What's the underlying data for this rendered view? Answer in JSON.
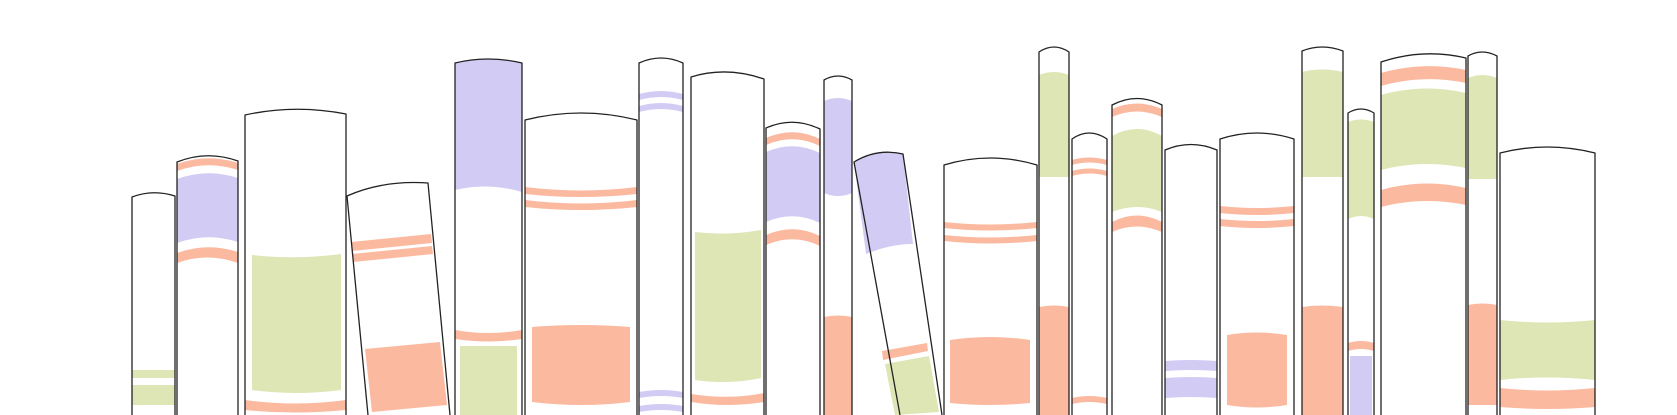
{
  "illustration": {
    "subject": "row-of-book-spines",
    "palette": {
      "lavender": "#d2cbf3",
      "green": "#dde6b4",
      "salmon": "#fbb9a0",
      "outline": "#222222",
      "paper": "#ffffff"
    },
    "books": [
      {
        "id": "book-01",
        "tilt": "upright",
        "colors": [
          "green"
        ]
      },
      {
        "id": "book-02",
        "tilt": "upright",
        "colors": [
          "salmon",
          "lavender"
        ]
      },
      {
        "id": "book-03",
        "tilt": "upright",
        "colors": [
          "green",
          "salmon"
        ]
      },
      {
        "id": "book-04",
        "tilt": "leaning-left",
        "colors": [
          "salmon"
        ]
      },
      {
        "id": "book-05",
        "tilt": "upright",
        "colors": [
          "lavender",
          "salmon",
          "green"
        ]
      },
      {
        "id": "book-06",
        "tilt": "upright",
        "colors": [
          "salmon"
        ]
      },
      {
        "id": "book-07",
        "tilt": "upright",
        "colors": [
          "lavender"
        ]
      },
      {
        "id": "book-08",
        "tilt": "upright",
        "colors": [
          "green",
          "salmon"
        ]
      },
      {
        "id": "book-09",
        "tilt": "upright",
        "colors": [
          "salmon",
          "lavender"
        ]
      },
      {
        "id": "book-10",
        "tilt": "upright",
        "colors": [
          "lavender",
          "salmon"
        ]
      },
      {
        "id": "book-11",
        "tilt": "leaning-right",
        "colors": [
          "lavender",
          "salmon",
          "green"
        ]
      },
      {
        "id": "book-12",
        "tilt": "upright",
        "colors": [
          "salmon"
        ]
      },
      {
        "id": "book-13",
        "tilt": "upright",
        "colors": [
          "green",
          "salmon"
        ]
      },
      {
        "id": "book-14",
        "tilt": "upright",
        "colors": [
          "salmon"
        ]
      },
      {
        "id": "book-15",
        "tilt": "upright",
        "colors": [
          "salmon",
          "green"
        ]
      },
      {
        "id": "book-16",
        "tilt": "upright",
        "colors": [
          "lavender"
        ]
      },
      {
        "id": "book-17",
        "tilt": "upright",
        "colors": [
          "salmon"
        ]
      },
      {
        "id": "book-18",
        "tilt": "upright",
        "colors": [
          "green",
          "salmon"
        ]
      },
      {
        "id": "book-19",
        "tilt": "upright",
        "colors": [
          "green",
          "salmon",
          "lavender"
        ]
      },
      {
        "id": "book-20",
        "tilt": "upright",
        "colors": [
          "salmon",
          "green"
        ]
      },
      {
        "id": "book-21",
        "tilt": "upright",
        "colors": [
          "green",
          "salmon"
        ]
      },
      {
        "id": "book-22",
        "tilt": "upright",
        "colors": [
          "green",
          "salmon"
        ]
      }
    ]
  }
}
